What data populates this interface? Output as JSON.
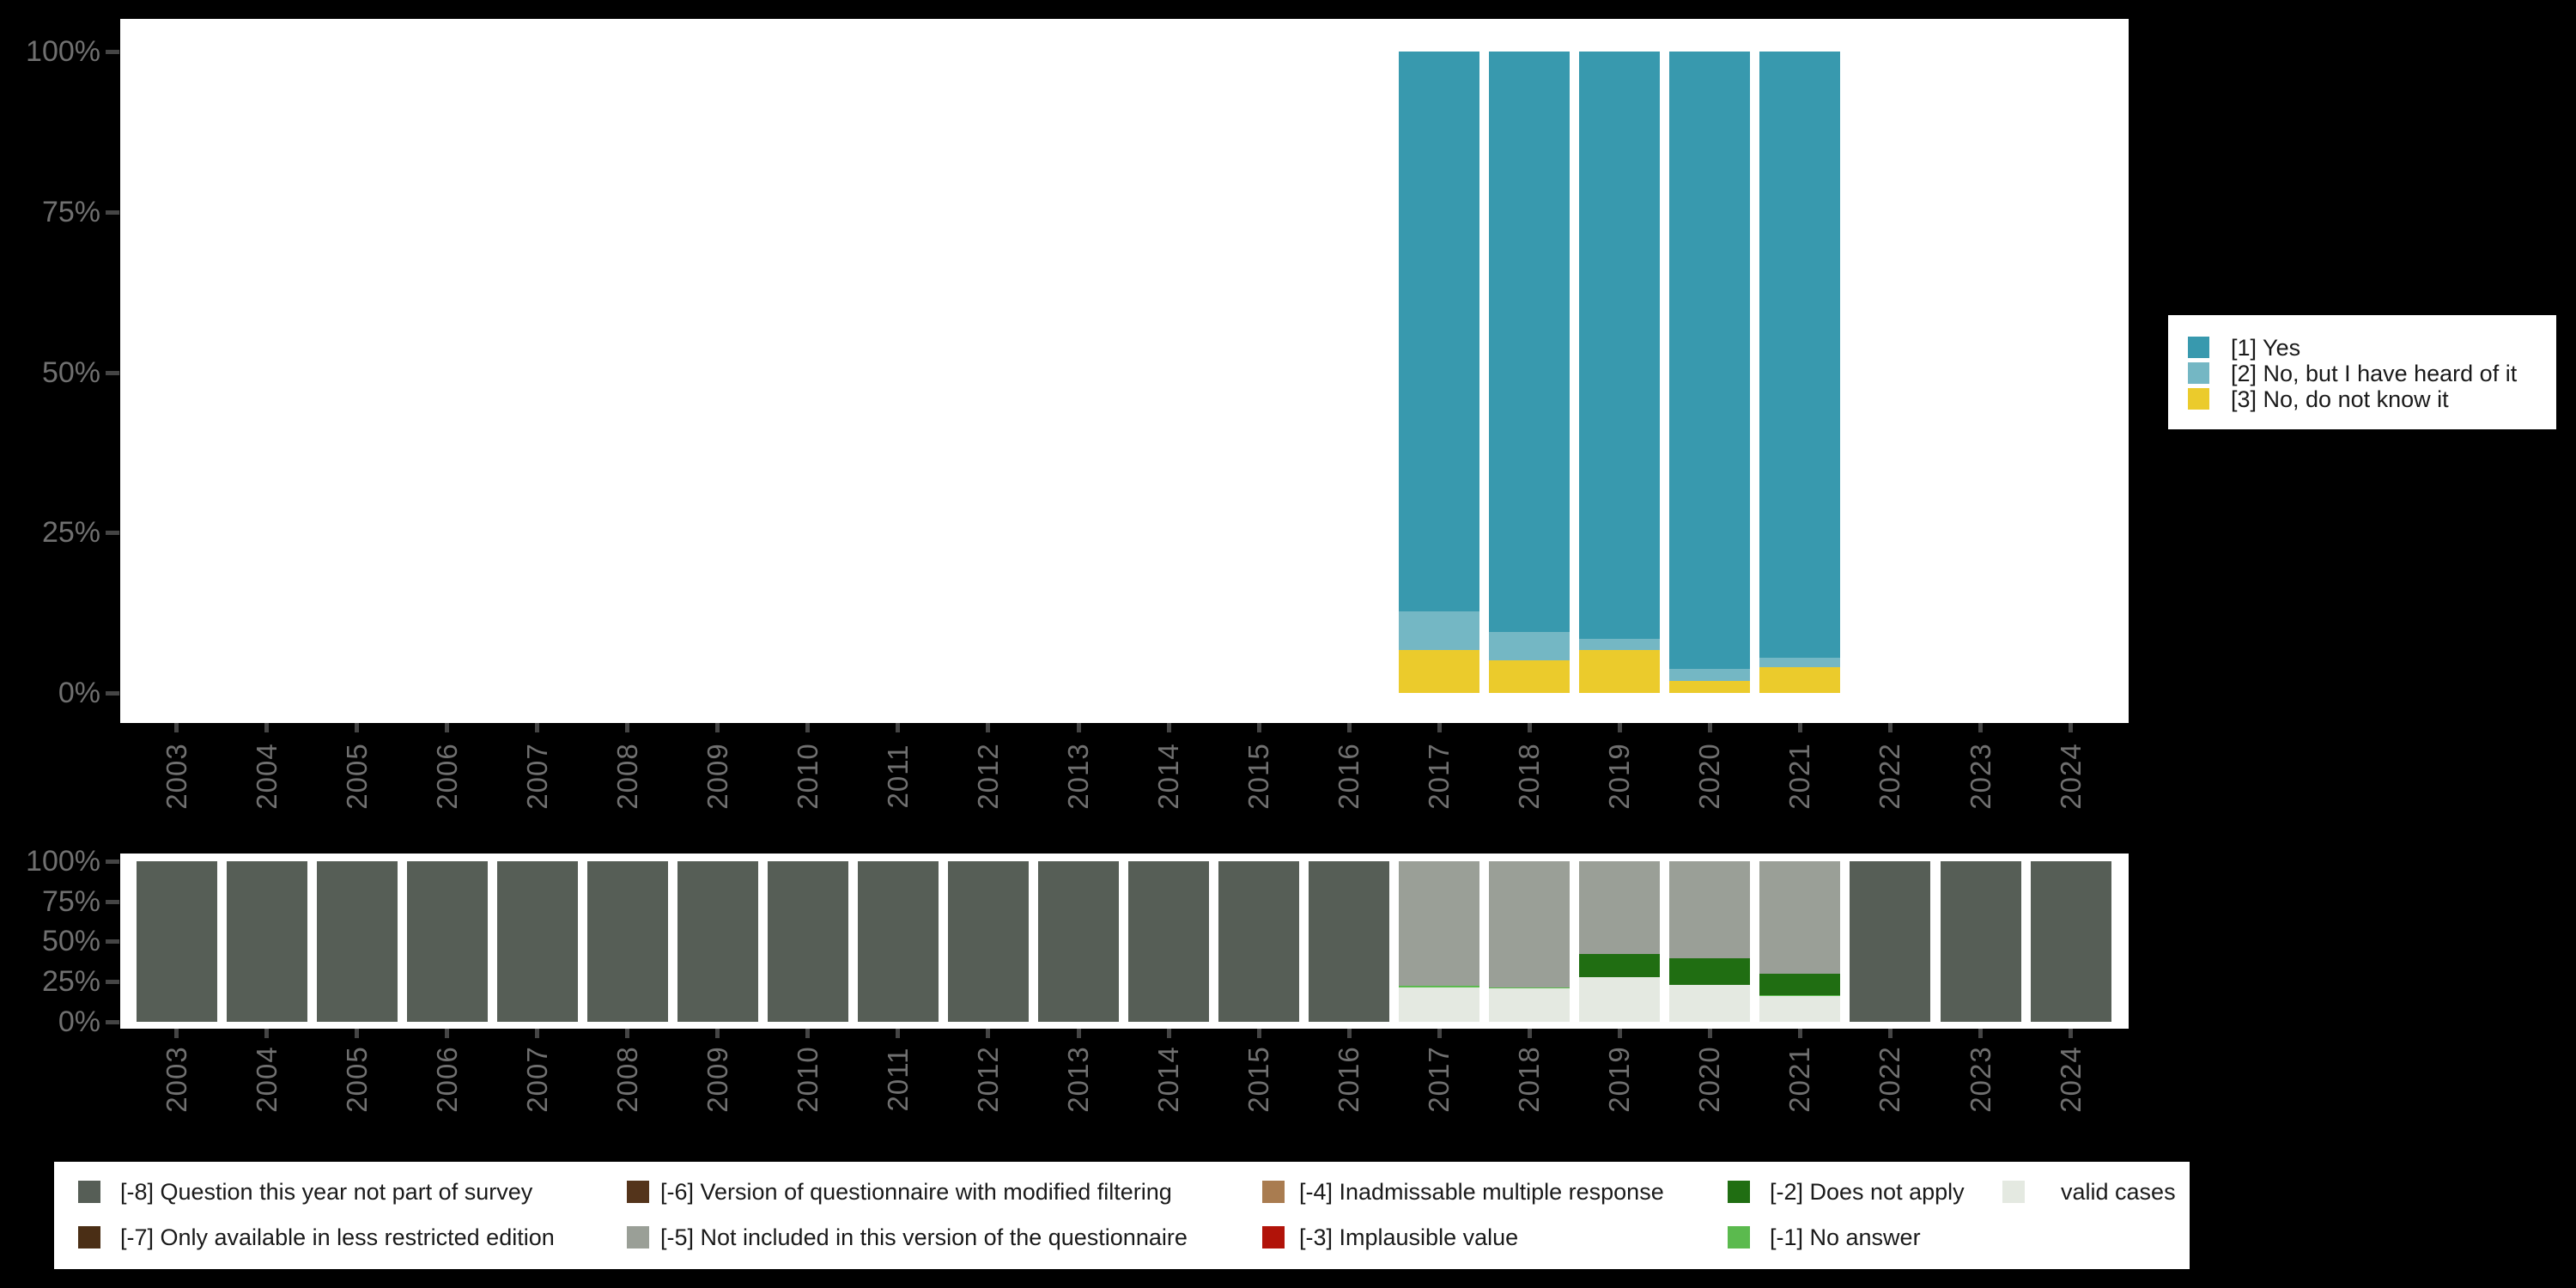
{
  "chart_data": [
    {
      "type": "bar",
      "stacked": true,
      "title": "",
      "xlabel": "",
      "ylabel": "",
      "ylim": [
        0,
        100
      ],
      "grid": false,
      "legend_position": "right",
      "categories": [
        "2003",
        "2004",
        "2005",
        "2006",
        "2007",
        "2008",
        "2009",
        "2010",
        "2011",
        "2012",
        "2013",
        "2014",
        "2015",
        "2016",
        "2017",
        "2018",
        "2019",
        "2020",
        "2021",
        "2022",
        "2023",
        "2024"
      ],
      "y_ticks": [
        "100%",
        "75%",
        "50%",
        "25%",
        "0%"
      ],
      "series": [
        {
          "name": "[3] No, do not know it",
          "color": "#EBCB2C",
          "values": [
            0,
            0,
            0,
            0,
            0,
            0,
            0,
            0,
            0,
            0,
            0,
            0,
            0,
            0,
            6.7,
            5.1,
            6.7,
            1.9,
            4.0,
            0,
            0,
            0
          ]
        },
        {
          "name": "[2] No, but I have heard of it",
          "color": "#74B7C4",
          "values": [
            0,
            0,
            0,
            0,
            0,
            0,
            0,
            0,
            0,
            0,
            0,
            0,
            0,
            0,
            6.0,
            4.4,
            1.7,
            1.9,
            1.5,
            0,
            0,
            0
          ]
        },
        {
          "name": "[1] Yes",
          "color": "#3899AE",
          "values": [
            0,
            0,
            0,
            0,
            0,
            0,
            0,
            0,
            0,
            0,
            0,
            0,
            0,
            0,
            87.3,
            90.5,
            91.6,
            96.2,
            94.5,
            0,
            0,
            0
          ]
        }
      ]
    },
    {
      "type": "bar",
      "stacked": true,
      "title": "",
      "xlabel": "",
      "ylabel": "",
      "ylim": [
        0,
        100
      ],
      "grid": false,
      "legend_position": "bottom",
      "categories": [
        "2003",
        "2004",
        "2005",
        "2006",
        "2007",
        "2008",
        "2009",
        "2010",
        "2011",
        "2012",
        "2013",
        "2014",
        "2015",
        "2016",
        "2017",
        "2018",
        "2019",
        "2020",
        "2021",
        "2022",
        "2023",
        "2024"
      ],
      "y_ticks": [
        "100%",
        "75%",
        "50%",
        "25%",
        "0%"
      ],
      "series": [
        {
          "name": "valid cases",
          "color": "#E4E9E1",
          "values": [
            0,
            0,
            0,
            0,
            0,
            0,
            0,
            0,
            0,
            0,
            0,
            0,
            0,
            0,
            21.6,
            20.7,
            27.9,
            23.0,
            15.9,
            0,
            0,
            0
          ]
        },
        {
          "name": "[-1] No answer",
          "color": "#5BBA4E",
          "values": [
            0,
            0,
            0,
            0,
            0,
            0,
            0,
            0,
            0,
            0,
            0,
            0,
            0,
            0,
            0.6,
            0.5,
            0,
            0,
            0.6,
            0,
            0,
            0
          ]
        },
        {
          "name": "[-2] Does not apply",
          "color": "#206E12",
          "values": [
            0,
            0,
            0,
            0,
            0,
            0,
            0,
            0,
            0,
            0,
            0,
            0,
            0,
            0,
            0,
            0,
            14.3,
            16.4,
            13.4,
            0,
            0,
            0
          ]
        },
        {
          "name": "[-5] Not included in this version of the questionnaire",
          "color": "#9A9F97",
          "values": [
            0,
            0,
            0,
            0,
            0,
            0,
            0,
            0,
            0,
            0,
            0,
            0,
            0,
            0,
            77.8,
            78.8,
            57.8,
            60.6,
            70.1,
            0,
            0,
            0
          ]
        },
        {
          "name": "[-8] Question this year not part of survey",
          "color": "#565E56",
          "values": [
            100,
            100,
            100,
            100,
            100,
            100,
            100,
            100,
            100,
            100,
            100,
            100,
            100,
            100,
            0,
            0,
            0,
            0,
            0,
            100,
            100,
            100
          ]
        }
      ]
    }
  ],
  "legend1": {
    "items": [
      {
        "label": "[1] Yes",
        "color": "#3899AE"
      },
      {
        "label": "[2] No, but I have heard of it",
        "color": "#74B7C4"
      },
      {
        "label": "[3] No, do not know it",
        "color": "#EBCB2C"
      }
    ]
  },
  "legend2": {
    "columns": [
      {
        "items": [
          {
            "label": "[-8] Question this year not part of survey",
            "color": "#565E56"
          },
          {
            "label": "[-7] Only available in less restricted edition",
            "color": "#4A2E15"
          }
        ]
      },
      {
        "items": [
          {
            "label": "[-6] Version of questionnaire with modified filtering",
            "color": "#54341B"
          },
          {
            "label": "[-5] Not included in this version of the questionnaire",
            "color": "#9A9F97"
          }
        ]
      },
      {
        "items": [
          {
            "label": "[-4] Inadmissable multiple response",
            "color": "#A97C50"
          },
          {
            "label": "[-3] Implausible value",
            "color": "#B11309"
          }
        ]
      },
      {
        "items": [
          {
            "label": "[-2] Does not apply",
            "color": "#206E12"
          },
          {
            "label": "[-1] No answer",
            "color": "#5BBA4E"
          }
        ]
      },
      {
        "items": [
          {
            "label": "valid cases",
            "color": "#E4E9E1"
          }
        ]
      }
    ]
  },
  "colors": {
    "background": "#000000",
    "plot_background": "#FFFFFF",
    "axis_text": "#707070",
    "tick_mark": "#454545",
    "legend_text": "#1A1A1A"
  }
}
